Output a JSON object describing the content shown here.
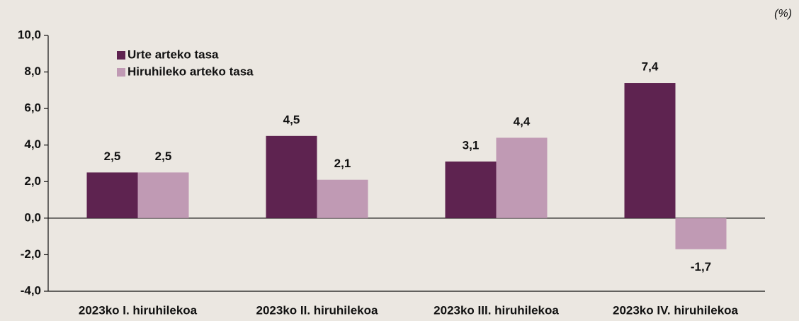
{
  "chart_data": {
    "type": "bar",
    "unit": "(%)",
    "categories": [
      "2023ko I. hiruhilekoa",
      "2023ko II. hiruhilekoa",
      "2023ko III. hiruhilekoa",
      "2023ko IV. hiruhilekoa"
    ],
    "series": [
      {
        "name": "Urte arteko tasa",
        "color": "#5e2350",
        "values": [
          2.5,
          4.5,
          3.1,
          7.4
        ],
        "value_labels": [
          "2,5",
          "4,5",
          "3,1",
          "7,4"
        ]
      },
      {
        "name": "Hiruhileko arteko tasa",
        "color": "#c09ab4",
        "values": [
          2.5,
          2.1,
          4.4,
          -1.7
        ],
        "value_labels": [
          "2,5",
          "2,1",
          "4,4",
          "-1,7"
        ]
      }
    ],
    "ylim": [
      -4,
      10
    ],
    "yticks": [
      {
        "value": -4,
        "label": "-4,0"
      },
      {
        "value": -2,
        "label": "-2,0"
      },
      {
        "value": 0,
        "label": "0,0"
      },
      {
        "value": 2,
        "label": "2,0"
      },
      {
        "value": 4,
        "label": "4,0"
      },
      {
        "value": 6,
        "label": "6,0"
      },
      {
        "value": 8,
        "label": "8,0"
      },
      {
        "value": 10,
        "label": "10,0"
      }
    ],
    "legend": "upper left",
    "grid": false
  }
}
